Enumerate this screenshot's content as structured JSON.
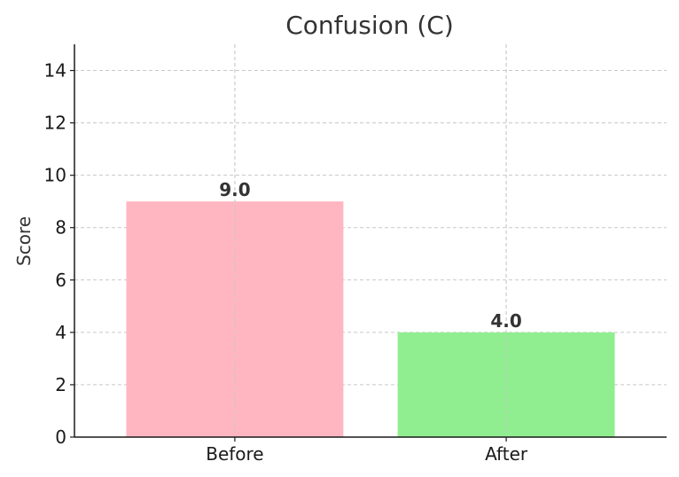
{
  "chart_data": {
    "type": "bar",
    "title": "Confusion (C)",
    "xlabel": "",
    "ylabel": "Score",
    "categories": [
      "Before",
      "After"
    ],
    "values": [
      9.0,
      4.0
    ],
    "value_labels": [
      "9.0",
      "4.0"
    ],
    "colors": [
      "#ffb6c1",
      "#90ee90"
    ],
    "ylim": [
      0,
      15
    ],
    "yticks": [
      0,
      2,
      4,
      6,
      8,
      10,
      12,
      14
    ],
    "grid": true
  }
}
